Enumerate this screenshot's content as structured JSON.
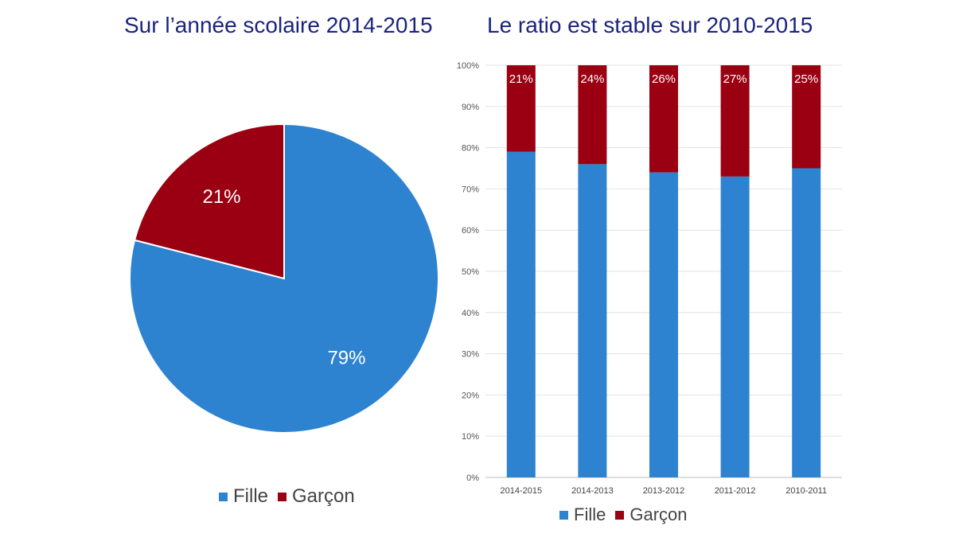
{
  "pie_title": "Sur l’année scolaire 2014-2015",
  "bar_title": "Le ratio est stable sur 2010-2015",
  "legend": [
    {
      "label": "Fille",
      "color": "#2e83d1"
    },
    {
      "label": "Garçon",
      "color": "#9b0012"
    }
  ],
  "chart_data": [
    {
      "type": "pie",
      "title": "Sur l’année scolaire 2014-2015",
      "series": [
        {
          "name": "Fille",
          "value": 79,
          "label": "79%",
          "color": "#2e83d1"
        },
        {
          "name": "Garçon",
          "value": 21,
          "label": "21%",
          "color": "#9b0012"
        }
      ]
    },
    {
      "type": "bar",
      "stacked": true,
      "title": "Le ratio est stable sur 2010-2015",
      "categories": [
        "2014-2015",
        "2014-2013",
        "2013-2012",
        "2011-2012",
        "2010-2011"
      ],
      "series": [
        {
          "name": "Fille",
          "values": [
            79,
            76,
            74,
            73,
            75
          ],
          "color": "#2e83d1"
        },
        {
          "name": "Garçon",
          "values": [
            21,
            24,
            26,
            27,
            25
          ],
          "data_labels": [
            "21%",
            "24%",
            "26%",
            "27%",
            "25%"
          ],
          "color": "#9b0012"
        }
      ],
      "ylim": [
        0,
        100
      ],
      "yticks": [
        "0%",
        "10%",
        "20%",
        "30%",
        "40%",
        "50%",
        "60%",
        "70%",
        "80%",
        "90%",
        "100%"
      ],
      "grid": true,
      "legend": "bottom"
    }
  ]
}
